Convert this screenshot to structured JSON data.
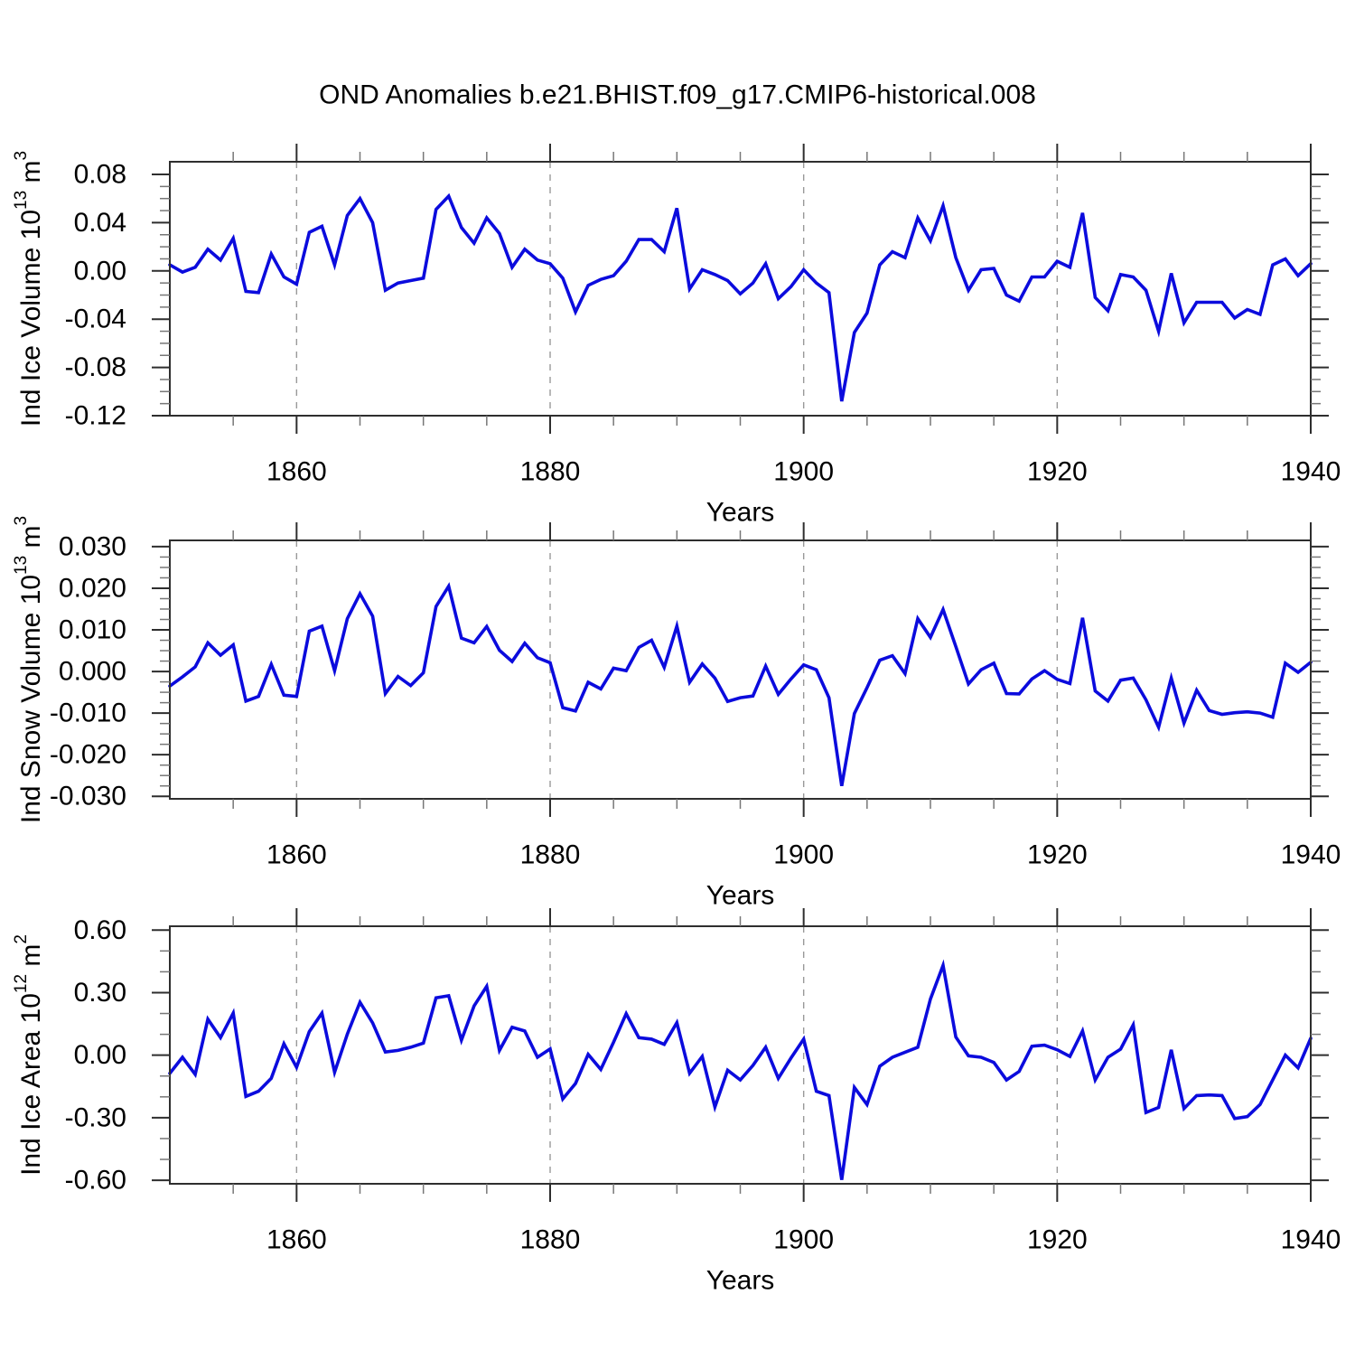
{
  "figure": {
    "title": "OND Anomalies b.e21.BHIST.f09_g17.CMIP6-historical.008",
    "background": "#ffffff"
  },
  "colors": {
    "line": "#0b0bdd",
    "frame": "#2e2e2e",
    "minor_tick": "#777777",
    "grid": "#999999",
    "text": "#000000"
  },
  "chart_data": [
    {
      "type": "line",
      "id": "ice-volume",
      "title": "OND Anomalies b.e21.BHIST.f09_g17.CMIP6-historical.008",
      "ylabel": "Ind Ice Volume 10^13 m^3",
      "ylabel_rich": [
        {
          "t": "Ind Ice Volume 10"
        },
        {
          "sup": "13"
        },
        {
          "t": " m"
        },
        {
          "sup": "3"
        }
      ],
      "xlabel": "Years",
      "x_start": 1850,
      "x_end": 1940,
      "x_step": 1,
      "ylim": [
        -0.12,
        0.0905
      ],
      "ytick_values": [
        0.08,
        0.04,
        0.0,
        -0.04,
        -0.08,
        -0.12
      ],
      "ytick_labels": [
        "0.08",
        "0.04",
        "0.00",
        "-0.04",
        "-0.08",
        "-0.12"
      ],
      "yminor_step": 0.01,
      "xtick_values": [
        1860,
        1880,
        1900,
        1920,
        1940
      ],
      "xtick_labels": [
        "1860",
        "1880",
        "1900",
        "1920",
        "1940"
      ],
      "xminor_step": 5,
      "grid_x": [
        1860,
        1880,
        1900,
        1920
      ],
      "grid_style": "dashed",
      "legend": "none",
      "values": [
        0.005,
        -0.001,
        0.003,
        0.018,
        0.009,
        0.027,
        -0.017,
        -0.018,
        0.014,
        -0.005,
        -0.011,
        0.032,
        0.037,
        0.005,
        0.046,
        0.06,
        0.04,
        -0.016,
        -0.01,
        -0.008,
        -0.006,
        0.051,
        0.062,
        0.036,
        0.023,
        0.044,
        0.031,
        0.003,
        0.018,
        0.009,
        0.006,
        -0.006,
        -0.034,
        -0.012,
        -0.007,
        -0.004,
        0.008,
        0.026,
        0.026,
        0.016,
        0.052,
        -0.015,
        0.001,
        -0.003,
        -0.008,
        -0.019,
        -0.01,
        0.006,
        -0.023,
        -0.013,
        0.001,
        -0.01,
        -0.018,
        -0.108,
        -0.051,
        -0.035,
        0.005,
        0.016,
        0.011,
        0.044,
        0.025,
        0.054,
        0.011,
        -0.016,
        0.001,
        0.002,
        -0.02,
        -0.025,
        -0.005,
        -0.005,
        0.008,
        0.003,
        0.048,
        -0.022,
        -0.033,
        -0.003,
        -0.005,
        -0.016,
        -0.05,
        -0.002,
        -0.043,
        -0.026,
        -0.026,
        -0.026,
        -0.039,
        -0.032,
        -0.036,
        0.005,
        0.01,
        -0.004,
        0.006
      ]
    },
    {
      "type": "line",
      "id": "snow-volume",
      "title": "",
      "ylabel": "Ind Snow Volume 10^13 m^3",
      "ylabel_rich": [
        {
          "t": "Ind Snow Volume 10"
        },
        {
          "sup": "13"
        },
        {
          "t": " m"
        },
        {
          "sup": "3"
        }
      ],
      "xlabel": "Years",
      "x_start": 1850,
      "x_end": 1940,
      "x_step": 1,
      "ylim": [
        -0.0306,
        0.0315
      ],
      "ytick_values": [
        0.03,
        0.02,
        0.01,
        0.0,
        -0.01,
        -0.02,
        -0.03
      ],
      "ytick_labels": [
        "0.030",
        "0.020",
        "0.010",
        "0.000",
        "-0.010",
        "-0.020",
        "-0.030"
      ],
      "yminor_step": 0.0025,
      "xtick_values": [
        1860,
        1880,
        1900,
        1920,
        1940
      ],
      "xtick_labels": [
        "1860",
        "1880",
        "1900",
        "1920",
        "1940"
      ],
      "xminor_step": 5,
      "grid_x": [
        1860,
        1880,
        1900,
        1920
      ],
      "grid_style": "dashed",
      "legend": "none",
      "values": [
        -0.0035,
        -0.0013,
        0.0011,
        0.0069,
        0.0039,
        0.0064,
        -0.0071,
        -0.006,
        0.0017,
        -0.0057,
        -0.006,
        0.0097,
        0.0109,
        0.0002,
        0.0127,
        0.0187,
        0.0133,
        -0.0053,
        -0.0012,
        -0.0034,
        -0.0003,
        0.0156,
        0.0205,
        0.008,
        0.0069,
        0.0108,
        0.0051,
        0.0024,
        0.0068,
        0.0033,
        0.0021,
        -0.0087,
        -0.0095,
        -0.0026,
        -0.0042,
        0.0008,
        0.0002,
        0.0058,
        0.0075,
        0.001,
        0.0109,
        -0.0026,
        0.0018,
        -0.0016,
        -0.0072,
        -0.0063,
        -0.0059,
        0.0013,
        -0.0055,
        -0.0018,
        0.0016,
        0.0004,
        -0.0063,
        -0.0275,
        -0.0101,
        -0.0039,
        0.0027,
        0.0038,
        -0.0005,
        0.0127,
        0.0082,
        0.0149,
        0.006,
        -0.003,
        0.0004,
        0.002,
        -0.0053,
        -0.0054,
        -0.0018,
        0.0002,
        -0.0019,
        -0.0029,
        0.0129,
        -0.0047,
        -0.0071,
        -0.0021,
        -0.0016,
        -0.0068,
        -0.0134,
        -0.0016,
        -0.0124,
        -0.0045,
        -0.0094,
        -0.0103,
        -0.0099,
        -0.0097,
        -0.01,
        -0.011,
        0.002,
        -0.0002,
        0.0022
      ]
    },
    {
      "type": "line",
      "id": "ice-area",
      "title": "",
      "ylabel": "Ind Ice Area 10^12 m^2",
      "ylabel_rich": [
        {
          "t": "Ind Ice Area 10"
        },
        {
          "sup": "12"
        },
        {
          "t": " m"
        },
        {
          "sup": "2"
        }
      ],
      "xlabel": "Years",
      "x_start": 1850,
      "x_end": 1940,
      "x_step": 1,
      "ylim": [
        -0.617,
        0.6185
      ],
      "ytick_values": [
        0.6,
        0.3,
        0.0,
        -0.3,
        -0.6
      ],
      "ytick_labels": [
        "0.60",
        "0.30",
        "0.00",
        "-0.30",
        "-0.60"
      ],
      "yminor_step": 0.1,
      "xtick_values": [
        1860,
        1880,
        1900,
        1920,
        1940
      ],
      "xtick_labels": [
        "1860",
        "1880",
        "1900",
        "1920",
        "1940"
      ],
      "xminor_step": 5,
      "grid_x": [
        1860,
        1880,
        1900,
        1920
      ],
      "grid_style": "dashed",
      "legend": "none",
      "values": [
        -0.087,
        -0.01,
        -0.092,
        0.173,
        0.084,
        0.202,
        -0.198,
        -0.173,
        -0.111,
        0.055,
        -0.058,
        0.113,
        0.202,
        -0.082,
        0.101,
        0.254,
        0.155,
        0.015,
        0.023,
        0.038,
        0.058,
        0.275,
        0.285,
        0.072,
        0.236,
        0.33,
        0.023,
        0.134,
        0.116,
        -0.01,
        0.03,
        -0.21,
        -0.136,
        0.004,
        -0.068,
        0.062,
        0.199,
        0.084,
        0.077,
        0.052,
        0.156,
        -0.087,
        -0.006,
        -0.249,
        -0.072,
        -0.119,
        -0.049,
        0.038,
        -0.111,
        -0.014,
        0.077,
        -0.173,
        -0.194,
        -0.598,
        -0.155,
        -0.237,
        -0.053,
        -0.01,
        0.014,
        0.038,
        0.269,
        0.431,
        0.087,
        -0.003,
        -0.01,
        -0.035,
        -0.119,
        -0.078,
        0.043,
        0.048,
        0.026,
        -0.006,
        0.116,
        -0.119,
        -0.01,
        0.029,
        0.145,
        -0.275,
        -0.251,
        0.026,
        -0.256,
        -0.194,
        -0.191,
        -0.194,
        -0.304,
        -0.295,
        -0.237,
        -0.119,
        0.0,
        -0.061,
        0.081
      ]
    }
  ]
}
